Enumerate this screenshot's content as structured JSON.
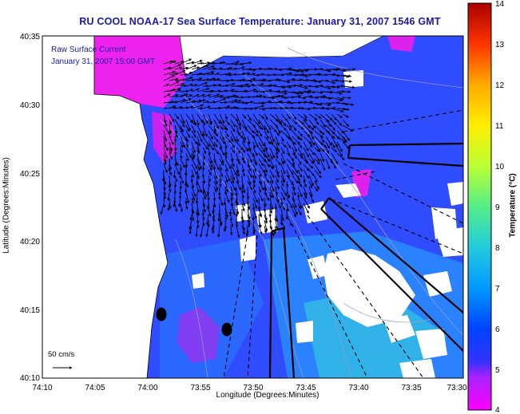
{
  "header": {
    "title": "RU COOL  NOAA-17  Sea Surface Temperature:  January 31, 2007 1546 GMT"
  },
  "legend": {
    "current_label": "Raw Surface Current",
    "current_time": "January 31, 2007 15:00 GMT",
    "scale_label": "50 cm/s"
  },
  "axes": {
    "xlabel": "Longitude (Degrees:Minutes)",
    "ylabel": "Latitude (Degrees:Minutes)",
    "x_ticks": [
      "74:10",
      "74:05",
      "74:00",
      "73:55",
      "73:50",
      "73:45",
      "73:40",
      "73:35",
      "73:30"
    ],
    "y_ticks": [
      "40:35",
      "40:30",
      "40:25",
      "40:20",
      "40:15",
      "40:10"
    ]
  },
  "colorbar": {
    "label": "Temperature (°C)",
    "ticks": [
      "14",
      "13",
      "12",
      "11",
      "10",
      "9",
      "8",
      "7",
      "6",
      "5",
      "4"
    ],
    "colors": [
      "#ff00ff",
      "#3333ff",
      "#0033ff",
      "#00aaff",
      "#33ddaa",
      "#ccff33",
      "#ffee00",
      "#ff9900",
      "#ff3300",
      "#cc0000",
      "#990000"
    ]
  },
  "colors": {
    "land": "#ffffff",
    "cloud_mask": "#ffffff",
    "water_main": "#2244ff",
    "water_cool": "#ee22ee",
    "water_warm": "#33aaff",
    "title": "#1a1aa8"
  }
}
